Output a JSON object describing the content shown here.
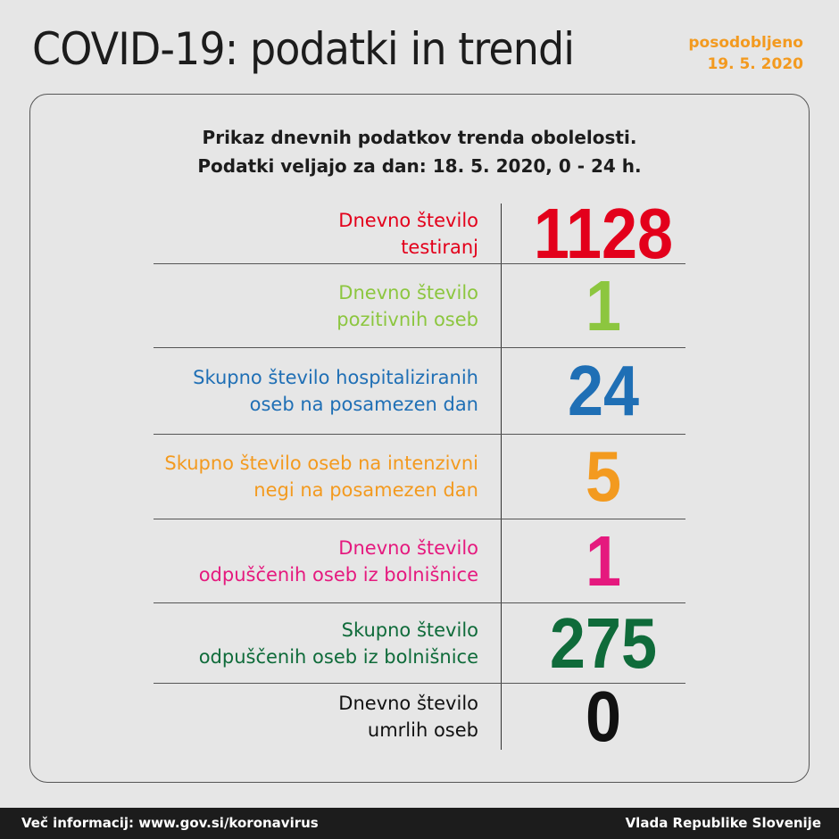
{
  "header": {
    "title": "COVID-19: podatki in trendi",
    "updated_label": "posodobljeno",
    "updated_date": "19. 5. 2020"
  },
  "subtitle": {
    "line1": "Prikaz dnevnih podatkov trenda obolelosti.",
    "line2": "Podatki veljajo za dan: 18. 5. 2020, 0 - 24 h."
  },
  "rows": [
    {
      "line1": "Dnevno število",
      "line2": "testiranj",
      "value": "1128",
      "color": "#e3001b"
    },
    {
      "line1": "Dnevno število",
      "line2": "pozitivnih oseb",
      "value": "1",
      "color": "#8cc63f"
    },
    {
      "line1": "Skupno število hospitaliziranih",
      "line2": "oseb na posamezen dan",
      "value": "24",
      "color": "#1f6fb5"
    },
    {
      "line1": "Skupno število oseb na intenzivni",
      "line2": "negi na posamezen dan",
      "value": "5",
      "color": "#f39a1f"
    },
    {
      "line1": "Dnevno število",
      "line2": "odpuščenih oseb iz bolnišnice",
      "value": "1",
      "color": "#e5197e"
    },
    {
      "line1": "Skupno število",
      "line2": "odpuščenih oseb iz bolnišnice",
      "value": "275",
      "color": "#0f6b3a"
    },
    {
      "line1": "Dnevno število",
      "line2": "umrlih oseb",
      "value": "0",
      "color": "#111111"
    }
  ],
  "footer": {
    "info": "Več informacij: www.gov.si/koronavirus",
    "org": "Vlada Republike Slovenije"
  }
}
